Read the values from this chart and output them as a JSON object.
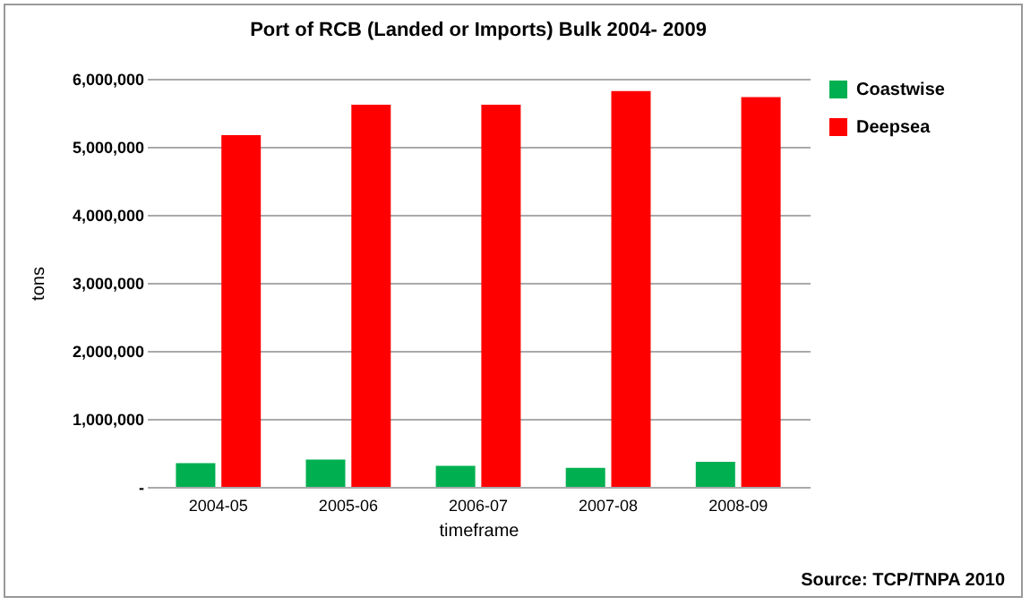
{
  "chart_data": {
    "type": "bar",
    "title": "Port of RCB (Landed or Imports)  Bulk 2004- 2009",
    "xlabel": "timeframe",
    "ylabel": "tons",
    "categories": [
      "2004-05",
      "2005-06",
      "2006-07",
      "2007-08",
      "2008-09"
    ],
    "series": [
      {
        "name": "Coastwise",
        "color": "#00b050",
        "values": [
          350000,
          400000,
          310000,
          280000,
          370000
        ]
      },
      {
        "name": "Deepsea",
        "color": "#ff0000",
        "values": [
          5170000,
          5620000,
          5620000,
          5820000,
          5730000
        ]
      }
    ],
    "ylim": [
      0,
      6000000
    ],
    "yticks": [
      {
        "value": 0,
        "label": "-"
      },
      {
        "value": 1000000,
        "label": "1,000,000"
      },
      {
        "value": 2000000,
        "label": "2,000,000"
      },
      {
        "value": 3000000,
        "label": "3,000,000"
      },
      {
        "value": 4000000,
        "label": "4,000,000"
      },
      {
        "value": 5000000,
        "label": "5,000,000"
      },
      {
        "value": 6000000,
        "label": "6,000,000"
      }
    ],
    "grid": "y",
    "legend": "right",
    "annotations": [
      "Source: TCP/TNPA 2010"
    ]
  }
}
